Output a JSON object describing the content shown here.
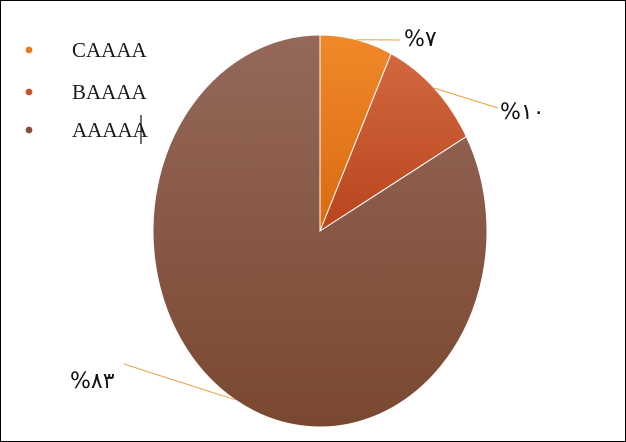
{
  "chart_data": {
    "type": "pie",
    "categories": [
      "CAAAA",
      "BAAAA",
      "AAAAA"
    ],
    "values": [
      7,
      10,
      83
    ],
    "data_labels": [
      "%٧",
      "%١٠",
      "%٨٣"
    ],
    "colors": [
      "#E5791C",
      "#C4522A",
      "#84503A"
    ],
    "start_angle_deg": 0,
    "direction": "clockwise",
    "legend_position": "top-left",
    "title": "",
    "xlabel": "",
    "ylabel": ""
  }
}
